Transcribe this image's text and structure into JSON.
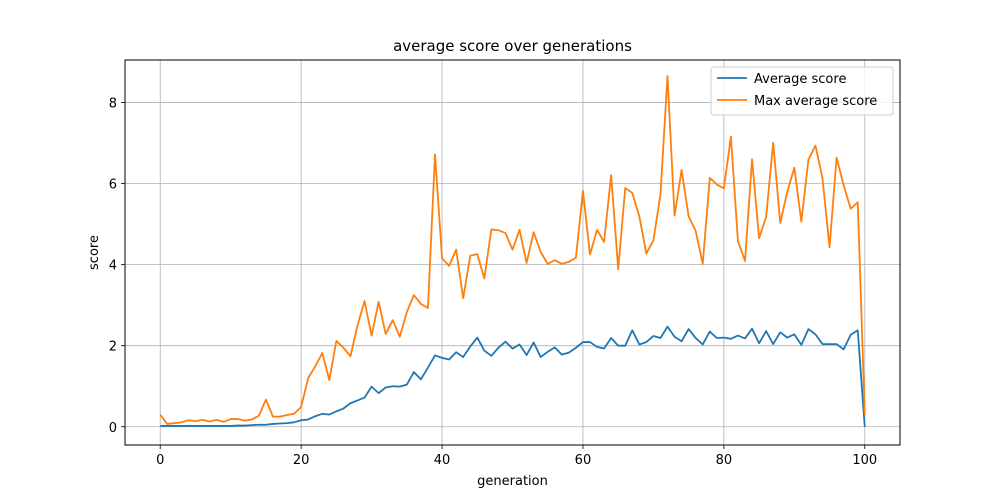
{
  "chart_data": {
    "type": "line",
    "title": "average score over generations",
    "xlabel": "generation",
    "ylabel": "score",
    "xlim": [
      -5,
      105
    ],
    "ylim": [
      -0.45,
      9.05
    ],
    "xticks": [
      0,
      20,
      40,
      60,
      80,
      100
    ],
    "yticks": [
      0,
      2,
      4,
      6,
      8
    ],
    "grid": true,
    "legend_position": "top-right",
    "series": [
      {
        "name": "Average score",
        "color": "#1f77b4",
        "x": [
          0,
          1,
          2,
          3,
          4,
          5,
          6,
          7,
          8,
          9,
          10,
          11,
          12,
          13,
          14,
          15,
          16,
          17,
          18,
          19,
          20,
          21,
          22,
          23,
          24,
          25,
          26,
          27,
          28,
          29,
          30,
          31,
          32,
          33,
          34,
          35,
          36,
          37,
          38,
          39,
          40,
          41,
          42,
          43,
          44,
          45,
          46,
          47,
          48,
          49,
          50,
          51,
          52,
          53,
          54,
          55,
          56,
          57,
          58,
          59,
          60,
          61,
          62,
          63,
          64,
          65,
          66,
          67,
          68,
          69,
          70,
          71,
          72,
          73,
          74,
          75,
          76,
          77,
          78,
          79,
          80,
          81,
          82,
          83,
          84,
          85,
          86,
          87,
          88,
          89,
          90,
          91,
          92,
          93,
          94,
          95,
          96,
          97,
          98,
          99,
          100
        ],
        "values": [
          0.02,
          0.02,
          0.02,
          0.02,
          0.02,
          0.02,
          0.02,
          0.02,
          0.02,
          0.02,
          0.02,
          0.03,
          0.03,
          0.04,
          0.05,
          0.05,
          0.07,
          0.08,
          0.09,
          0.11,
          0.16,
          0.18,
          0.26,
          0.32,
          0.3,
          0.38,
          0.45,
          0.58,
          0.65,
          0.72,
          0.99,
          0.83,
          0.97,
          1.0,
          0.99,
          1.04,
          1.35,
          1.17,
          1.46,
          1.76,
          1.7,
          1.66,
          1.84,
          1.72,
          1.98,
          2.2,
          1.88,
          1.75,
          1.95,
          2.1,
          1.93,
          2.03,
          1.77,
          2.08,
          1.72,
          1.85,
          1.96,
          1.78,
          1.83,
          1.95,
          2.09,
          2.09,
          1.97,
          1.93,
          2.19,
          2.0,
          2.0,
          2.38,
          2.03,
          2.09,
          2.24,
          2.19,
          2.47,
          2.22,
          2.11,
          2.41,
          2.19,
          2.03,
          2.35,
          2.19,
          2.2,
          2.17,
          2.25,
          2.18,
          2.42,
          2.06,
          2.36,
          2.04,
          2.33,
          2.2,
          2.28,
          2.02,
          2.41,
          2.28,
          2.04,
          2.04,
          2.04,
          1.91,
          2.27,
          2.38,
          0.0
        ]
      },
      {
        "name": "Max average score",
        "color": "#ff7f0e",
        "x": [
          0,
          1,
          2,
          3,
          4,
          5,
          6,
          7,
          8,
          9,
          10,
          11,
          12,
          13,
          14,
          15,
          16,
          17,
          18,
          19,
          20,
          21,
          22,
          23,
          24,
          25,
          26,
          27,
          28,
          29,
          30,
          31,
          32,
          33,
          34,
          35,
          36,
          37,
          38,
          39,
          40,
          41,
          42,
          43,
          44,
          45,
          46,
          47,
          48,
          49,
          50,
          51,
          52,
          53,
          54,
          55,
          56,
          57,
          58,
          59,
          60,
          61,
          62,
          63,
          64,
          65,
          66,
          67,
          68,
          69,
          70,
          71,
          72,
          73,
          74,
          75,
          76,
          77,
          78,
          79,
          80,
          81,
          82,
          83,
          84,
          85,
          86,
          87,
          88,
          89,
          90,
          91,
          92,
          93,
          94,
          95,
          96,
          97,
          98,
          99,
          100
        ],
        "values": [
          0.3,
          0.07,
          0.09,
          0.11,
          0.16,
          0.14,
          0.17,
          0.13,
          0.17,
          0.12,
          0.19,
          0.19,
          0.15,
          0.18,
          0.27,
          0.67,
          0.25,
          0.25,
          0.29,
          0.32,
          0.49,
          1.2,
          1.49,
          1.82,
          1.15,
          2.12,
          1.95,
          1.74,
          2.5,
          3.1,
          2.25,
          3.08,
          2.29,
          2.63,
          2.22,
          2.83,
          3.25,
          3.03,
          2.93,
          6.72,
          4.16,
          3.97,
          4.37,
          3.17,
          4.22,
          4.26,
          3.66,
          4.87,
          4.85,
          4.78,
          4.37,
          4.86,
          4.04,
          4.8,
          4.31,
          4.02,
          4.11,
          4.02,
          4.07,
          4.17,
          5.82,
          4.25,
          4.86,
          4.56,
          6.21,
          3.89,
          5.89,
          5.77,
          5.19,
          4.27,
          4.6,
          5.73,
          8.65,
          5.21,
          6.34,
          5.19,
          4.83,
          4.02,
          6.14,
          5.98,
          5.88,
          7.16,
          4.58,
          4.09,
          6.6,
          4.65,
          5.18,
          7.01,
          5.03,
          5.8,
          6.39,
          5.06,
          6.59,
          6.94,
          6.13,
          4.43,
          6.64,
          5.96,
          5.38,
          5.54,
          0.3
        ]
      }
    ]
  }
}
